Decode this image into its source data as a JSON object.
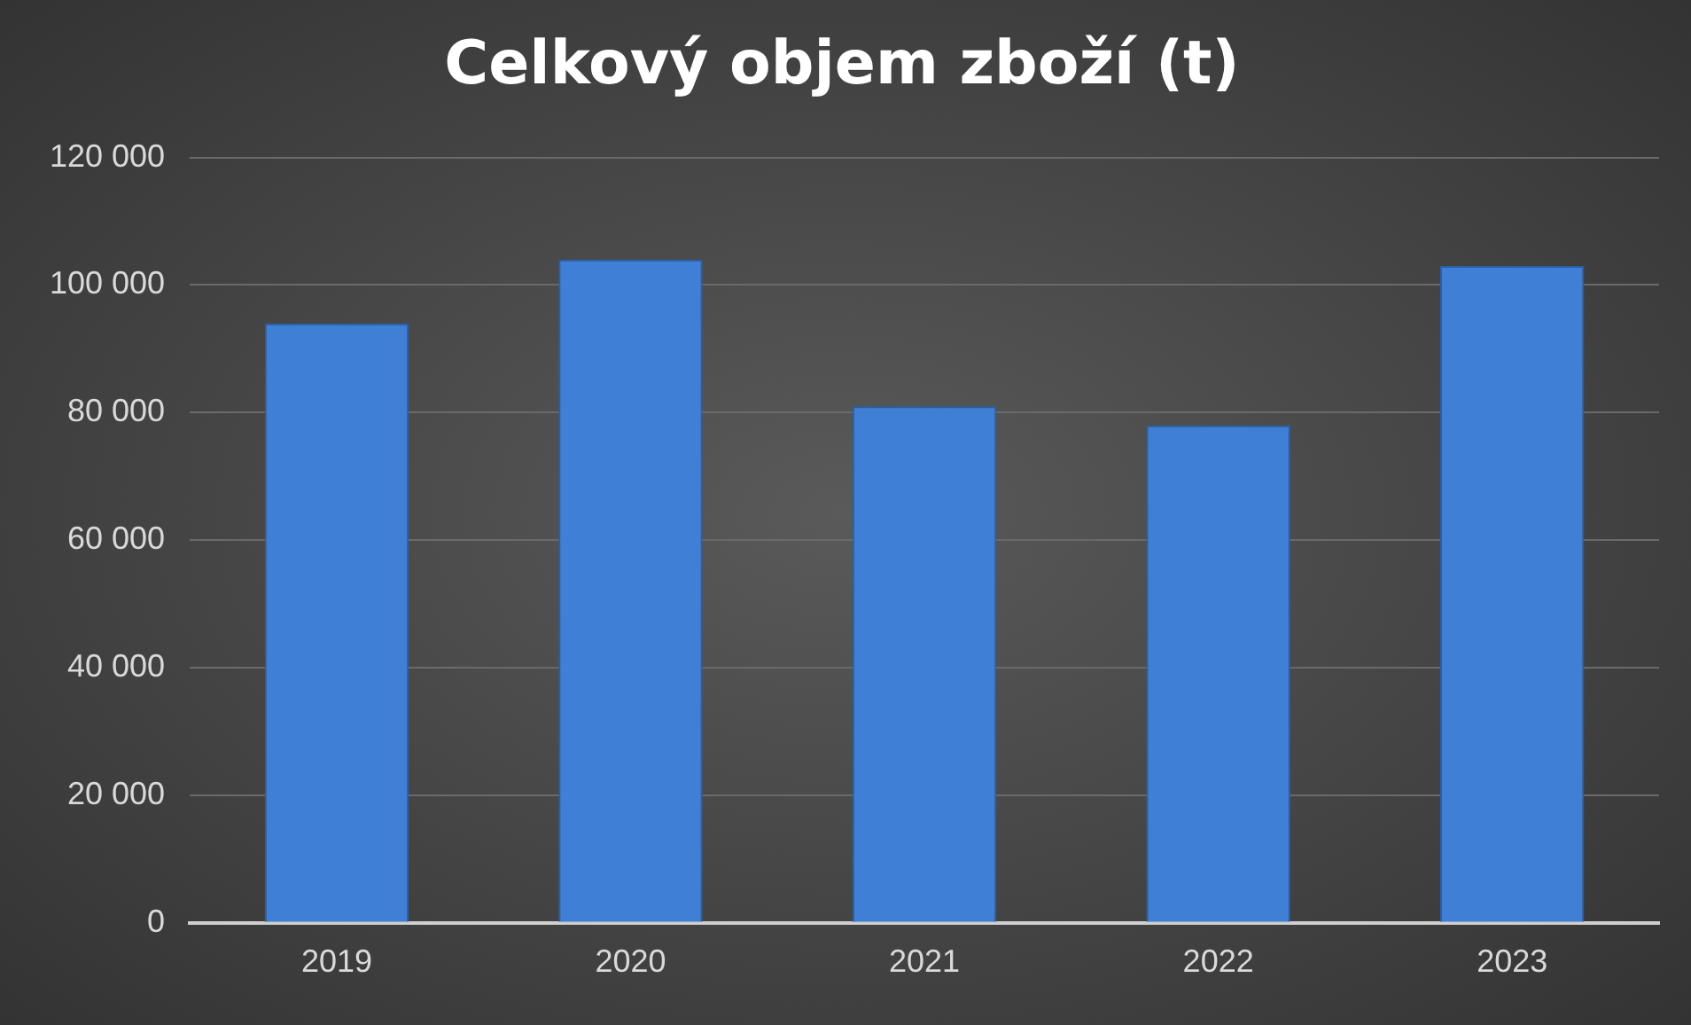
{
  "chart_data": {
    "type": "bar",
    "title": "Celkový objem zboží (t)",
    "categories": [
      "2019",
      "2020",
      "2021",
      "2022",
      "2023"
    ],
    "values": [
      94000,
      104000,
      81000,
      78000,
      103000
    ],
    "color": "#3f80d6",
    "ylim": [
      0,
      120000
    ],
    "yticks": [
      {
        "value": 0,
        "label": "0"
      },
      {
        "value": 20000,
        "label": "20 000"
      },
      {
        "value": 40000,
        "label": "40 000"
      },
      {
        "value": 60000,
        "label": "60 000"
      },
      {
        "value": 80000,
        "label": "80 000"
      },
      {
        "value": 100000,
        "label": "100 000"
      },
      {
        "value": 120000,
        "label": "120 000"
      }
    ],
    "grid": "y"
  }
}
